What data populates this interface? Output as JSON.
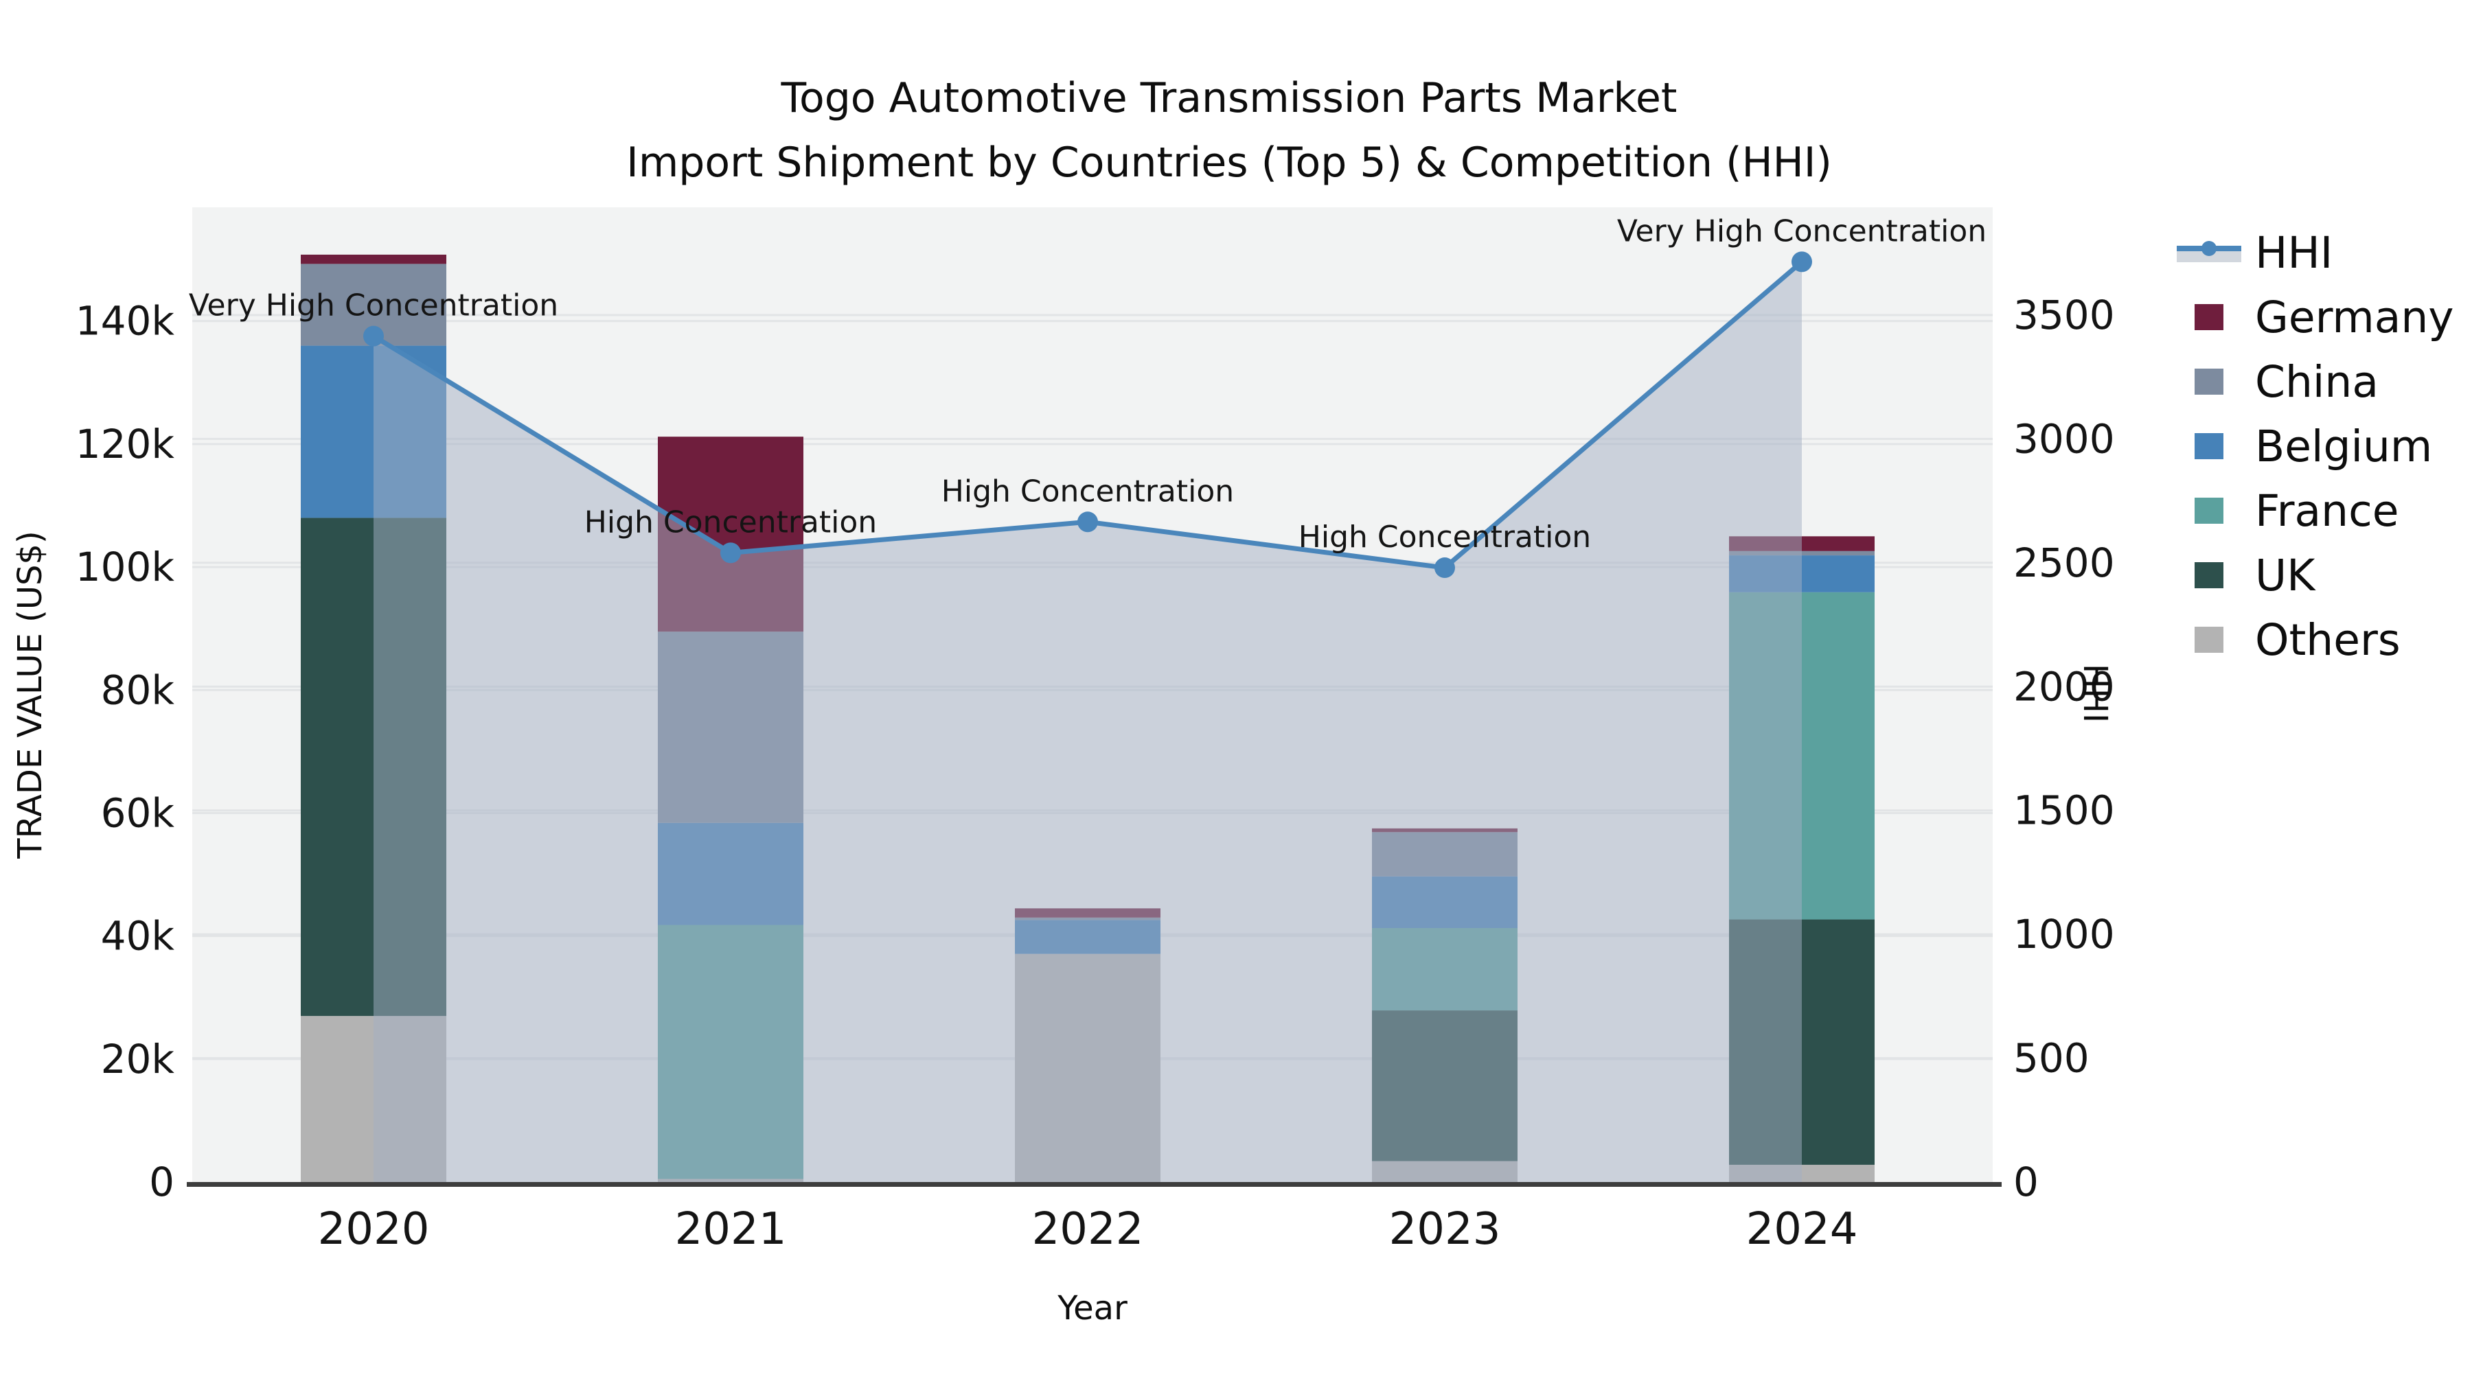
{
  "title": {
    "line1": "Togo Automotive Transmission Parts Market",
    "line2": "Import Shipment by Countries (Top 5) & Competition (HHI)"
  },
  "chart_data": {
    "type": "combo-stacked-bar-line",
    "categories": [
      "2020",
      "2021",
      "2022",
      "2023",
      "2024"
    ],
    "bar_series": [
      {
        "name": "Others",
        "color": "#b3b3b3",
        "values": [
          27000,
          500,
          37100,
          3400,
          2800
        ]
      },
      {
        "name": "UK",
        "color": "#2d504c",
        "values": [
          81000,
          0,
          0,
          24500,
          39900
        ]
      },
      {
        "name": "France",
        "color": "#5ba19e",
        "values": [
          0,
          41300,
          0,
          13400,
          53200
        ]
      },
      {
        "name": "Belgium",
        "color": "#4682b8",
        "values": [
          28000,
          16600,
          5500,
          8400,
          6000
        ]
      },
      {
        "name": "China",
        "color": "#7d8b9f",
        "values": [
          13300,
          31100,
          400,
          7200,
          700
        ]
      },
      {
        "name": "Germany",
        "color": "#6f1e3d",
        "values": [
          1500,
          31700,
          1500,
          600,
          2400
        ]
      }
    ],
    "line_series": {
      "name": "HHI",
      "color": "#4a86bb",
      "fill_color": "#a4afc4",
      "fill_opacity": 0.5,
      "values": [
        3415,
        2540,
        2665,
        2480,
        3715
      ]
    },
    "annotations": [
      "Very High Concentration",
      "High Concentration",
      "High Concentration",
      "High Concentration",
      "Very High Concentration"
    ],
    "left_axis": {
      "label": "TRADE VALUE (US$)",
      "tick_values": [
        0,
        20000,
        40000,
        60000,
        80000,
        100000,
        120000,
        140000
      ],
      "tick_labels": [
        "0",
        "20k",
        "40k",
        "60k",
        "80k",
        "100k",
        "120k",
        "140k"
      ],
      "range": [
        0,
        158500
      ]
    },
    "right_axis": {
      "label": "HHI",
      "tick_values": [
        0,
        500,
        1000,
        1500,
        2000,
        2500,
        3000,
        3500
      ],
      "tick_labels": [
        "0",
        "500",
        "1000",
        "1500",
        "2000",
        "2500",
        "3000",
        "3500"
      ],
      "range": [
        0,
        3935
      ]
    },
    "x_axis": {
      "label": "Year"
    },
    "legend": [
      {
        "label": "HHI",
        "type": "line"
      },
      {
        "label": "Germany",
        "type": "box",
        "color": "#6f1e3d"
      },
      {
        "label": "China",
        "type": "box",
        "color": "#7d8b9f"
      },
      {
        "label": "Belgium",
        "type": "box",
        "color": "#4682b8"
      },
      {
        "label": "France",
        "type": "box",
        "color": "#5ba19e"
      },
      {
        "label": "UK",
        "type": "box",
        "color": "#2d504c"
      },
      {
        "label": "Others",
        "type": "box",
        "color": "#b3b3b3"
      }
    ],
    "layout_hints": {
      "plot_background": "#f2f3f3",
      "gridline_color": "#e2e4e6",
      "axis_line_color": "#3d3d3d",
      "grid": "on",
      "legend_position": "right"
    }
  }
}
